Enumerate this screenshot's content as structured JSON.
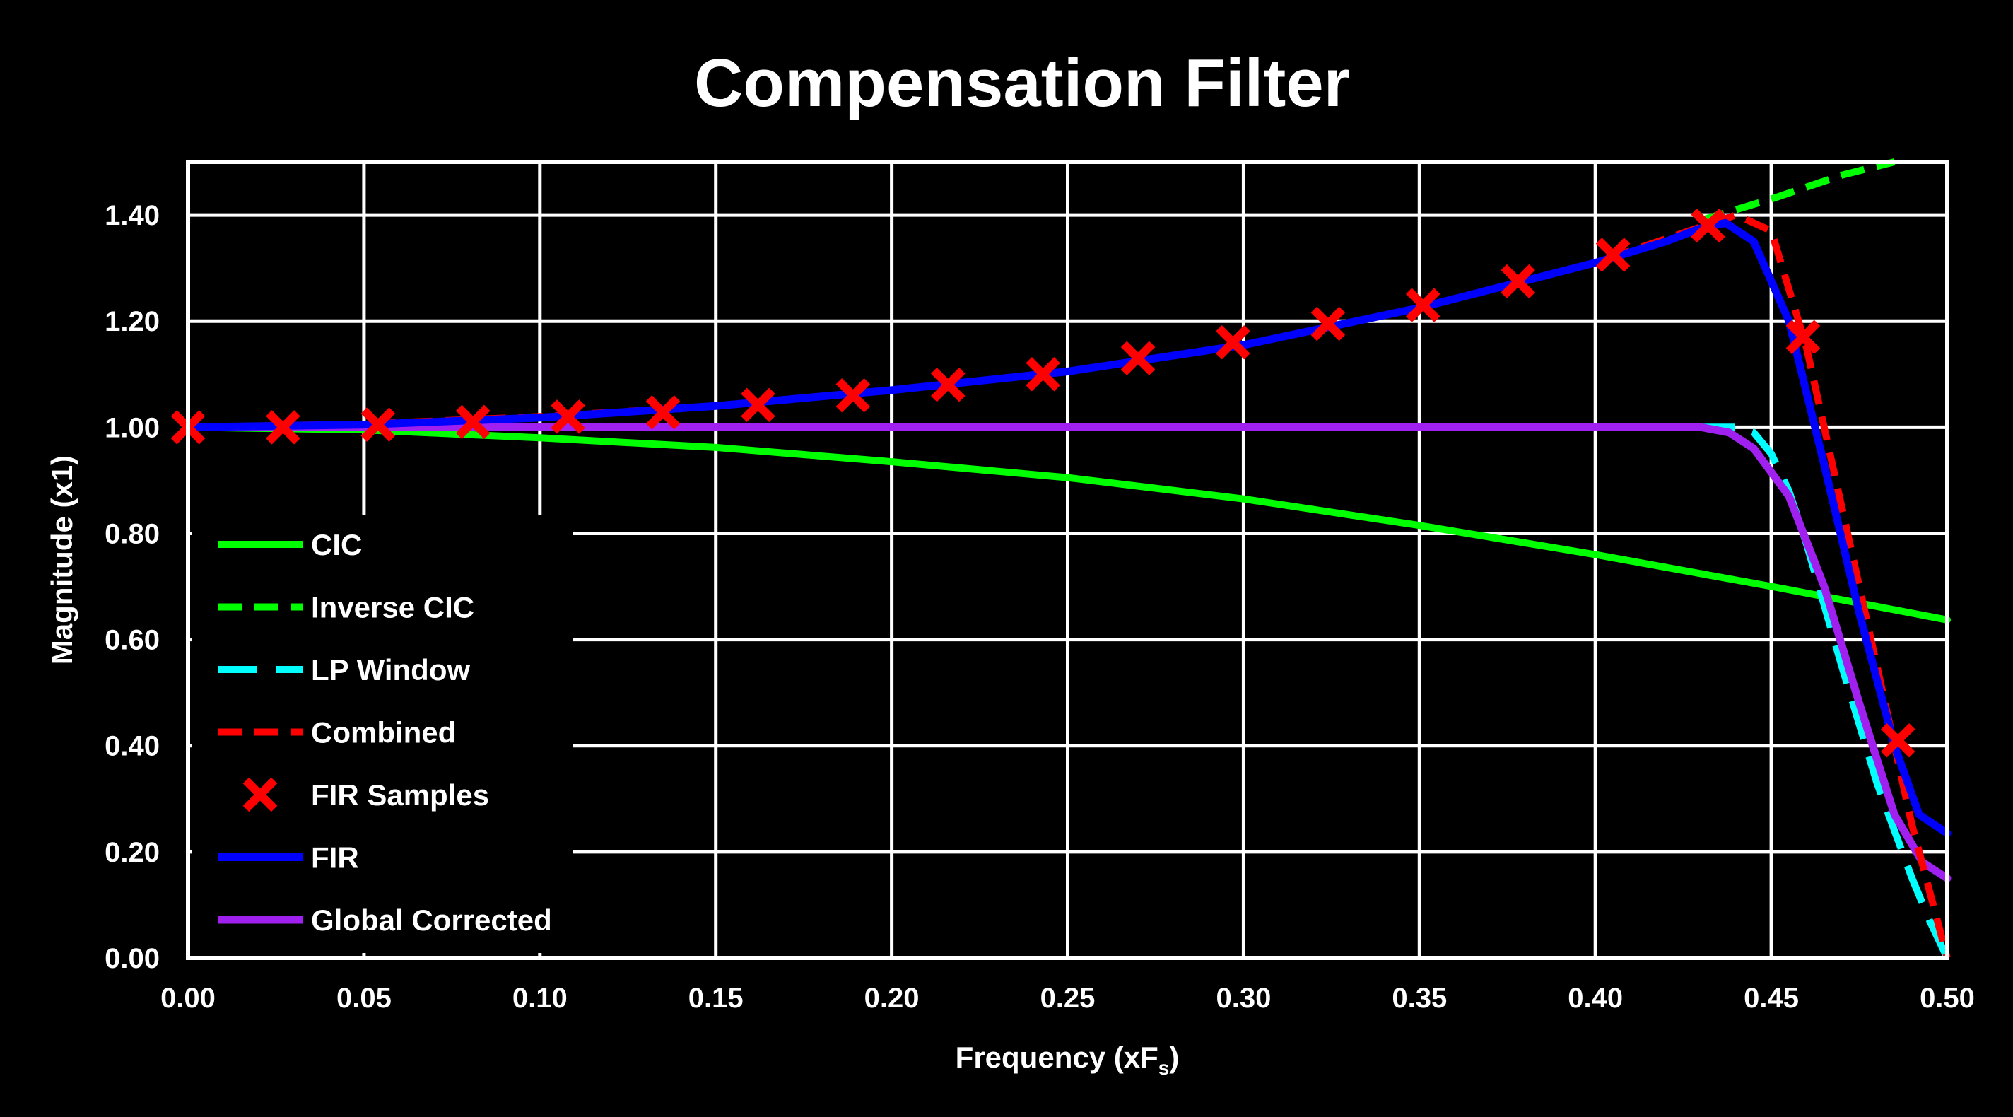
{
  "chart_data": {
    "type": "line",
    "title": "Compensation Filter",
    "xlabel": "Frequency (xF",
    "xlabel_sub": "s",
    "xlabel_close": ")",
    "ylabel": "Magnitude (x1)",
    "xlim": [
      0,
      0.5
    ],
    "ylim": [
      0,
      1.5
    ],
    "xticks": [
      "0.00",
      "0.05",
      "0.10",
      "0.15",
      "0.20",
      "0.25",
      "0.30",
      "0.35",
      "0.40",
      "0.45",
      "0.50"
    ],
    "yticks": [
      "0.00",
      "0.20",
      "0.40",
      "0.60",
      "0.80",
      "1.00",
      "1.20",
      "1.40"
    ],
    "grid": true,
    "legend_position": "bottom-left",
    "series": [
      {
        "name": "CIC",
        "style": "solid",
        "color": "#00ff00",
        "x": [
          0,
          0.05,
          0.1,
          0.15,
          0.2,
          0.25,
          0.3,
          0.35,
          0.4,
          0.45,
          0.5
        ],
        "y": [
          1.0,
          0.995,
          0.98,
          0.962,
          0.935,
          0.905,
          0.865,
          0.815,
          0.76,
          0.7,
          0.637
        ]
      },
      {
        "name": "Inverse CIC",
        "style": "dashed",
        "color": "#00ff00",
        "x": [
          0.43,
          0.45,
          0.47,
          0.485
        ],
        "y": [
          1.39,
          1.43,
          1.475,
          1.5
        ]
      },
      {
        "name": "LP Window",
        "style": "longdash",
        "color": "#00ffff",
        "x": [
          0,
          0.1,
          0.2,
          0.3,
          0.4,
          0.44,
          0.445,
          0.45,
          0.455,
          0.46,
          0.47,
          0.48,
          0.49,
          0.495,
          0.5
        ],
        "y": [
          1.0,
          1.0,
          1.0,
          1.0,
          1.0,
          1.0,
          0.99,
          0.95,
          0.88,
          0.78,
          0.55,
          0.33,
          0.15,
          0.07,
          0.0
        ]
      },
      {
        "name": "Combined",
        "style": "dashed",
        "color": "#ff0000",
        "x": [
          0,
          0.05,
          0.1,
          0.15,
          0.2,
          0.25,
          0.3,
          0.35,
          0.4,
          0.44,
          0.45,
          0.46,
          0.47,
          0.48,
          0.49,
          0.5
        ],
        "y": [
          1.0,
          1.006,
          1.02,
          1.04,
          1.07,
          1.105,
          1.155,
          1.225,
          1.31,
          1.4,
          1.37,
          1.15,
          0.85,
          0.55,
          0.25,
          0.0
        ]
      },
      {
        "name": "FIR Samples",
        "style": "markers",
        "color": "#ff0000",
        "x": [
          0.0,
          0.027,
          0.054,
          0.081,
          0.108,
          0.135,
          0.162,
          0.189,
          0.216,
          0.243,
          0.27,
          0.297,
          0.324,
          0.351,
          0.378,
          0.405,
          0.432,
          0.459,
          0.486
        ],
        "y": [
          1.0,
          1.0,
          1.005,
          1.01,
          1.02,
          1.028,
          1.042,
          1.06,
          1.08,
          1.1,
          1.13,
          1.16,
          1.195,
          1.23,
          1.275,
          1.325,
          1.38,
          1.17,
          0.41
        ]
      },
      {
        "name": "FIR",
        "style": "solid",
        "color": "#0000ff",
        "x": [
          0,
          0.05,
          0.1,
          0.15,
          0.2,
          0.25,
          0.3,
          0.35,
          0.4,
          0.42,
          0.43,
          0.437,
          0.445,
          0.455,
          0.465,
          0.475,
          0.485,
          0.492,
          0.5
        ],
        "y": [
          1.0,
          1.005,
          1.018,
          1.04,
          1.07,
          1.105,
          1.155,
          1.225,
          1.31,
          1.35,
          1.375,
          1.385,
          1.35,
          1.2,
          0.93,
          0.65,
          0.4,
          0.27,
          0.235
        ]
      },
      {
        "name": "Global Corrected",
        "style": "solid",
        "color": "#a020f0",
        "x": [
          0,
          0.1,
          0.2,
          0.3,
          0.4,
          0.43,
          0.438,
          0.445,
          0.455,
          0.465,
          0.475,
          0.485,
          0.493,
          0.5
        ],
        "y": [
          1.0,
          1.0,
          1.0,
          1.0,
          1.0,
          1.0,
          0.99,
          0.96,
          0.87,
          0.7,
          0.48,
          0.27,
          0.18,
          0.15
        ]
      }
    ]
  }
}
